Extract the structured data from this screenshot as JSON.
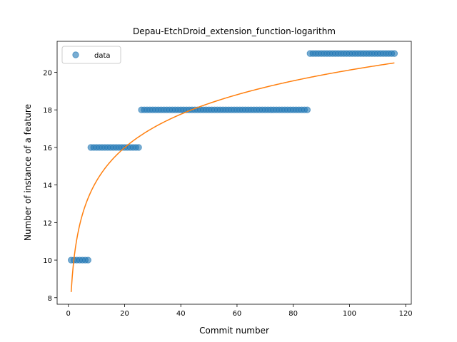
{
  "chart_data": {
    "type": "scatter",
    "title": "Depau-EtchDroid_extension_function-logarithm",
    "xlabel": "Commit number",
    "ylabel": "Number of instance of a feature",
    "xlim": [
      -4,
      122
    ],
    "ylim": [
      7.65,
      21.65
    ],
    "xticks": [
      0,
      20,
      40,
      60,
      80,
      100,
      120
    ],
    "yticks": [
      8,
      10,
      12,
      14,
      16,
      18,
      20
    ],
    "grid": false,
    "legend": {
      "position": "top-left",
      "entries": [
        "data"
      ]
    },
    "colors": {
      "data": "#1f77b4",
      "fit": "#ff7f0e"
    },
    "series": [
      {
        "name": "data",
        "kind": "scatter",
        "segments": [
          {
            "x_start": 1,
            "x_end": 7,
            "y": 10
          },
          {
            "x_start": 8,
            "x_end": 25,
            "y": 16
          },
          {
            "x_start": 26,
            "x_end": 85,
            "y": 18
          },
          {
            "x_start": 86,
            "x_end": 116,
            "y": 21
          }
        ]
      },
      {
        "kind": "line",
        "function": "logarithmic",
        "x_range": [
          1,
          116
        ],
        "y_start": 8.3,
        "y_end": 20.5
      }
    ]
  }
}
